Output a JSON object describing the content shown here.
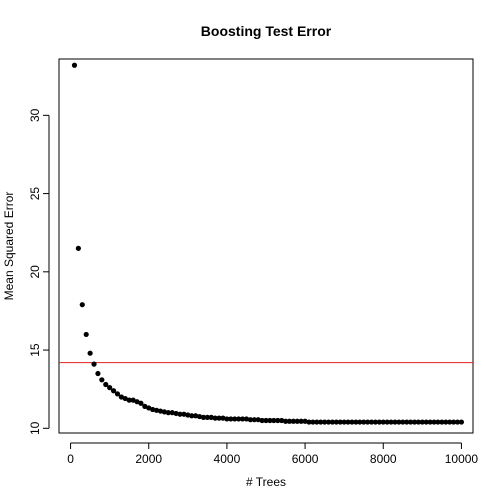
{
  "chart_data": {
    "type": "scatter",
    "title": "Boosting Test Error",
    "xlabel": "# Trees",
    "ylabel": "Mean Squared Error",
    "xlim": [
      -296,
      10296
    ],
    "ylim": [
      9.7,
      33.6
    ],
    "x_ticks": [
      0,
      2000,
      4000,
      6000,
      8000,
      10000
    ],
    "y_ticks": [
      10,
      15,
      20,
      25,
      30
    ],
    "x_tick_labels": [
      "0",
      "2000",
      "4000",
      "6000",
      "8000",
      "10000"
    ],
    "y_tick_labels": [
      "10",
      "15",
      "20",
      "25",
      "30"
    ],
    "grid": false,
    "legend": "none",
    "point_color": "#000000",
    "reference_line": {
      "y": 14.2,
      "color": "#e0201e"
    },
    "x": [
      100,
      200,
      300,
      400,
      500,
      600,
      700,
      800,
      900,
      1000,
      1100,
      1200,
      1300,
      1400,
      1500,
      1600,
      1700,
      1800,
      1900,
      2000,
      2100,
      2200,
      2300,
      2400,
      2500,
      2600,
      2700,
      2800,
      2900,
      3000,
      3100,
      3200,
      3300,
      3400,
      3500,
      3600,
      3700,
      3800,
      3900,
      4000,
      4100,
      4200,
      4300,
      4400,
      4500,
      4600,
      4700,
      4800,
      4900,
      5000,
      5100,
      5200,
      5300,
      5400,
      5500,
      5600,
      5700,
      5800,
      5900,
      6000,
      6100,
      6200,
      6300,
      6400,
      6500,
      6600,
      6700,
      6800,
      6900,
      7000,
      7100,
      7200,
      7300,
      7400,
      7500,
      7600,
      7700,
      7800,
      7900,
      8000,
      8100,
      8200,
      8300,
      8400,
      8500,
      8600,
      8700,
      8800,
      8900,
      9000,
      9100,
      9200,
      9300,
      9400,
      9500,
      9600,
      9700,
      9800,
      9900,
      10000
    ],
    "y": [
      33.2,
      21.5,
      17.9,
      16.0,
      14.8,
      14.1,
      13.5,
      13.1,
      12.8,
      12.6,
      12.4,
      12.2,
      12.0,
      11.9,
      11.8,
      11.8,
      11.7,
      11.6,
      11.4,
      11.3,
      11.2,
      11.15,
      11.1,
      11.05,
      11.0,
      11.0,
      10.95,
      10.9,
      10.9,
      10.85,
      10.8,
      10.8,
      10.75,
      10.7,
      10.7,
      10.7,
      10.65,
      10.65,
      10.65,
      10.6,
      10.6,
      10.6,
      10.6,
      10.6,
      10.6,
      10.55,
      10.55,
      10.55,
      10.5,
      10.5,
      10.5,
      10.5,
      10.5,
      10.5,
      10.45,
      10.45,
      10.45,
      10.45,
      10.45,
      10.45,
      10.4,
      10.4,
      10.4,
      10.4,
      10.4,
      10.4,
      10.4,
      10.4,
      10.4,
      10.4,
      10.4,
      10.4,
      10.4,
      10.4,
      10.4,
      10.4,
      10.4,
      10.4,
      10.4,
      10.4,
      10.4,
      10.4,
      10.4,
      10.4,
      10.4,
      10.4,
      10.4,
      10.4,
      10.4,
      10.4,
      10.4,
      10.4,
      10.4,
      10.4,
      10.4,
      10.4,
      10.4,
      10.4,
      10.4,
      10.4
    ]
  }
}
